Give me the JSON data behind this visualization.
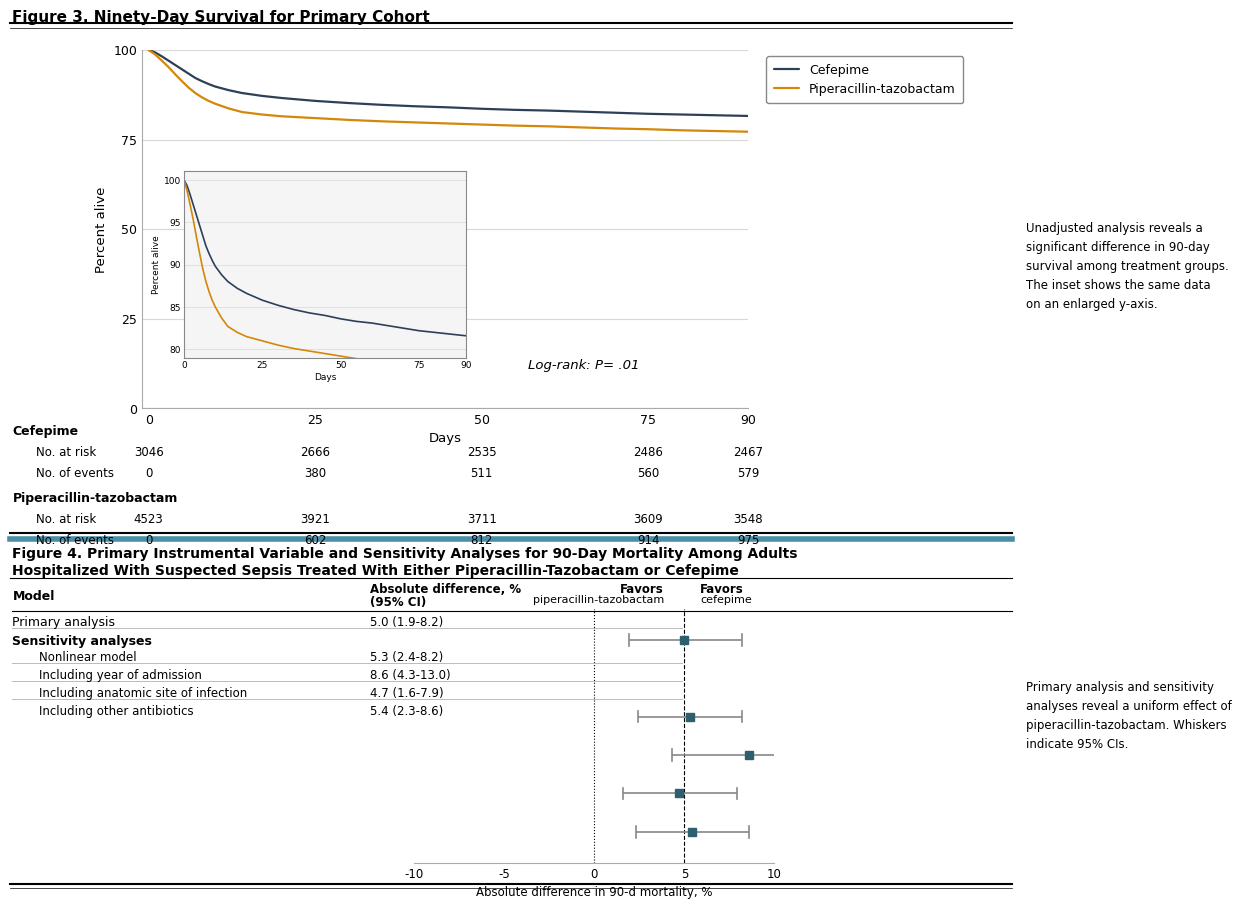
{
  "fig3_title": "Figure 3. Ninety-Day Survival for Primary Cohort",
  "fig4_title_line1": "Figure 4. Primary Instrumental Variable and Sensitivity Analyses for 90-Day Mortality Among Adults",
  "fig4_title_line2": "Hospitalized With Suspected Sepsis Treated With Either Piperacillin-Tazobactam or Cefepime",
  "cefepime_color": "#2e4057",
  "pipetazo_color": "#d4870a",
  "cefepime_x": [
    0,
    1,
    2,
    3,
    4,
    5,
    6,
    7,
    8,
    9,
    10,
    12,
    14,
    17,
    20,
    25,
    30,
    35,
    40,
    45,
    50,
    55,
    60,
    65,
    70,
    75,
    80,
    85,
    90
  ],
  "cefepime_y": [
    100,
    99.3,
    98.2,
    97.0,
    95.8,
    94.6,
    93.4,
    92.2,
    91.3,
    90.5,
    89.8,
    88.8,
    88.0,
    87.2,
    86.6,
    85.8,
    85.2,
    84.7,
    84.3,
    84.0,
    83.6,
    83.3,
    83.1,
    82.8,
    82.5,
    82.2,
    82.0,
    81.8,
    81.6
  ],
  "pipetazo_x": [
    0,
    1,
    2,
    3,
    4,
    5,
    6,
    7,
    8,
    9,
    10,
    12,
    14,
    17,
    20,
    25,
    30,
    35,
    40,
    45,
    50,
    55,
    60,
    65,
    70,
    75,
    80,
    85,
    90
  ],
  "pipetazo_y": [
    100,
    98.7,
    97.0,
    95.2,
    93.2,
    91.3,
    89.5,
    88.0,
    86.8,
    85.8,
    85.0,
    83.7,
    82.7,
    82.0,
    81.5,
    81.0,
    80.5,
    80.1,
    79.8,
    79.5,
    79.2,
    78.9,
    78.7,
    78.4,
    78.1,
    77.9,
    77.6,
    77.4,
    77.2
  ],
  "fig3_table": {
    "cefepime_risk": [
      3046,
      2666,
      2535,
      2486,
      2467
    ],
    "cefepime_events": [
      0,
      380,
      511,
      560,
      579
    ],
    "pipetazo_risk": [
      4523,
      3921,
      3711,
      3609,
      3548
    ],
    "pipetazo_events": [
      0,
      602,
      812,
      914,
      975
    ],
    "time_points": [
      0,
      25,
      50,
      75,
      90
    ]
  },
  "logrank_text": "Log-rank: P= .01",
  "fig4_models": [
    "Primary analysis",
    "Sensitivity analyses",
    "Nonlinear model",
    "Including year of admission",
    "Including anatomic site of infection",
    "Including other antibiotics"
  ],
  "fig4_ci_text": [
    "5.0 (1.9-8.2)",
    "",
    "5.3 (2.4-8.2)",
    "8.6 (4.3-13.0)",
    "4.7 (1.6-7.9)",
    "5.4 (2.3-8.6)"
  ],
  "fig4_estimates": [
    5.0,
    null,
    5.3,
    8.6,
    4.7,
    5.4
  ],
  "fig4_ci_low": [
    1.9,
    null,
    2.4,
    4.3,
    1.6,
    2.3
  ],
  "fig4_ci_high": [
    8.2,
    null,
    8.2,
    13.0,
    7.9,
    8.6
  ],
  "fig3_side_note": "Unadjusted analysis reveals a\nsignificant difference in 90-day\nsurvival among treatment groups.\nThe inset shows the same data\non an enlarged y-axis.",
  "fig4_side_note": "Primary analysis and sensitivity\nanalyses reveal a uniform effect of\npiperacillin-tazobactam. Whiskers\nindicate 95% CIs.",
  "teal_header_color": "#4a8fa8",
  "forest_square_color": "#2e5f6e",
  "bg_color": "#ffffff",
  "grid_color": "#d8d8d8",
  "spine_color": "#aaaaaa"
}
